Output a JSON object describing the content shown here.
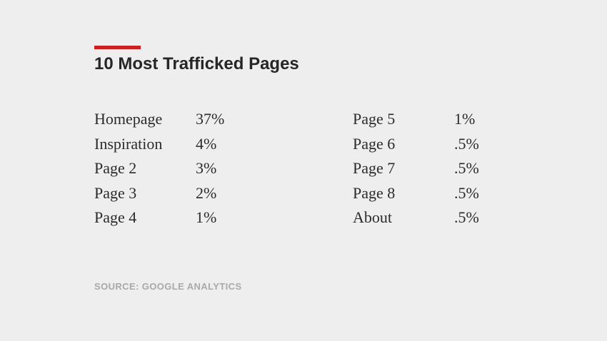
{
  "accent_color": "#cc1f1f",
  "title": "10 Most Trafficked Pages",
  "table": {
    "left_column": [
      {
        "page": "Homepage",
        "percent": "37%"
      },
      {
        "page": "Inspiration",
        "percent": "4%"
      },
      {
        "page": "Page 2",
        "percent": "3%"
      },
      {
        "page": "Page 3",
        "percent": "2%"
      },
      {
        "page": "Page 4",
        "percent": "1%"
      }
    ],
    "right_column": [
      {
        "page": "Page 5",
        "percent": "1%"
      },
      {
        "page": "Page 6",
        "percent": ".5%"
      },
      {
        "page": "Page 7",
        "percent": ".5%"
      },
      {
        "page": "Page 8",
        "percent": ".5%"
      },
      {
        "page": "About",
        "percent": ".5%"
      }
    ]
  },
  "source": "SOURCE: GOOGLE ANALYTICS"
}
